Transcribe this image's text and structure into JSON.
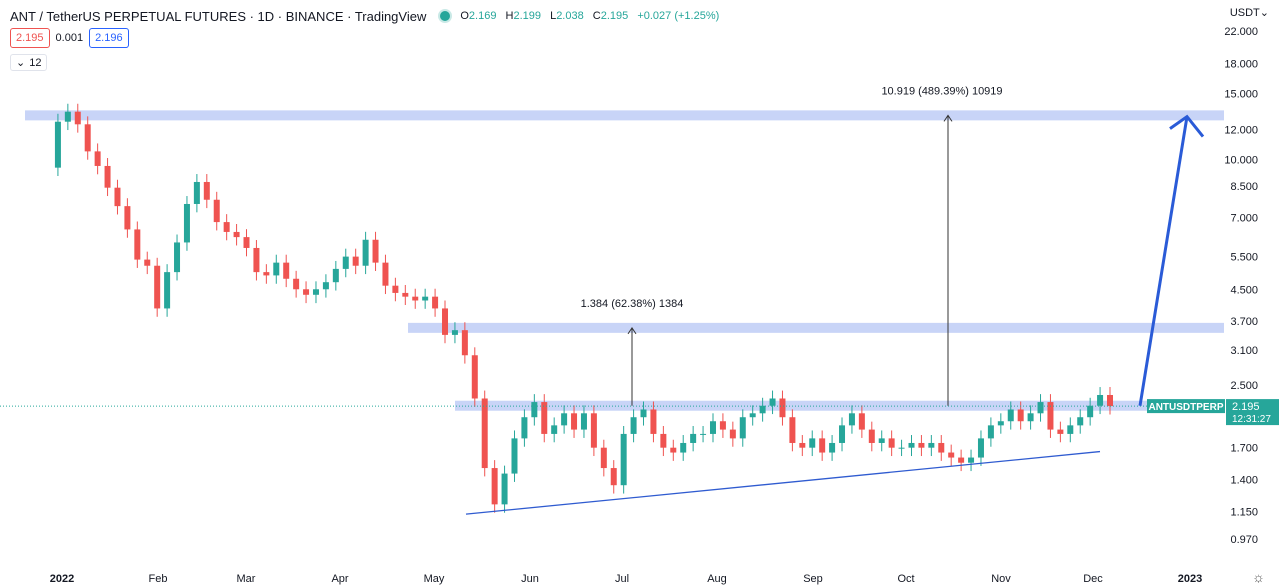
{
  "header": {
    "title": "ANT / TetherUS PERPETUAL FUTURES · 1D · BINANCE · TradingView",
    "ohlc": {
      "o_label": "O",
      "o": "2.169",
      "h_label": "H",
      "h": "2.199",
      "l_label": "L",
      "l": "2.038",
      "c_label": "C",
      "c": "2.195",
      "change": "+0.027 (+1.25%)"
    }
  },
  "quotes": {
    "sell": "2.195",
    "spread": "0.001",
    "buy": "2.196"
  },
  "indicator": {
    "value": "12"
  },
  "currency": "USDT",
  "colors": {
    "up": "#26a69a",
    "down": "#ef5350",
    "zone": "#c5d2f7",
    "trendline": "#2f5bd0",
    "arrow": "#2a5bd7"
  },
  "chart_data": {
    "type": "candlestick",
    "scale": "log",
    "y_ticks": [
      "22.000",
      "18.000",
      "15.000",
      "12.000",
      "10.000",
      "8.500",
      "7.000",
      "5.500",
      "4.500",
      "3.700",
      "3.100",
      "2.500",
      "1.700",
      "1.400",
      "1.150",
      "0.970"
    ],
    "x_ticks": [
      "2022",
      "Feb",
      "Mar",
      "Apr",
      "May",
      "Jun",
      "Jul",
      "Aug",
      "Sep",
      "Oct",
      "Nov",
      "Dec",
      "2023"
    ],
    "zones": [
      13.1,
      3.55,
      2.2
    ],
    "last_price": {
      "label": "ANTUSDTPERP",
      "price": "2.195",
      "countdown": "12:31:27"
    },
    "measure_small": {
      "text": "1.384 (62.38%) 1384",
      "from": 2.2,
      "to": 3.55
    },
    "measure_large": {
      "text": "10.919 (489.39%) 10919",
      "from": 2.2,
      "to": 13.1
    },
    "trendline": {
      "from": 1.13,
      "to": 1.66
    },
    "projection_arrow": {
      "from": 2.2,
      "to": 13.0
    },
    "price_path": [
      9.5,
      12.6,
      13.4,
      12.4,
      10.5,
      9.6,
      8.4,
      7.5,
      6.5,
      5.4,
      5.2,
      4.0,
      5.0,
      6.0,
      7.6,
      8.7,
      7.8,
      6.8,
      6.4,
      6.2,
      5.8,
      5.0,
      4.9,
      5.3,
      4.8,
      4.5,
      4.35,
      4.5,
      4.7,
      5.1,
      5.5,
      5.2,
      6.1,
      5.3,
      4.6,
      4.4,
      4.3,
      4.2,
      4.3,
      4.0,
      3.4,
      3.5,
      3.0,
      2.3,
      1.5,
      1.2,
      1.45,
      1.8,
      2.05,
      2.25,
      1.85,
      1.95,
      2.1,
      1.9,
      2.1,
      1.7,
      1.5,
      1.35,
      1.85,
      2.05,
      2.15,
      1.85,
      1.7,
      1.65,
      1.75,
      1.85,
      1.85,
      2.0,
      1.9,
      1.8,
      2.05,
      2.1,
      2.2,
      2.3,
      2.05,
      1.75,
      1.7,
      1.8,
      1.65,
      1.75,
      1.95,
      2.1,
      1.9,
      1.75,
      1.8,
      1.7,
      1.7,
      1.75,
      1.7,
      1.75,
      1.65,
      1.6,
      1.55,
      1.6,
      1.8,
      1.95,
      2.0,
      2.15,
      2.0,
      2.1,
      2.25,
      1.9,
      1.85,
      1.95,
      2.05,
      2.2,
      2.35,
      2.195
    ]
  }
}
